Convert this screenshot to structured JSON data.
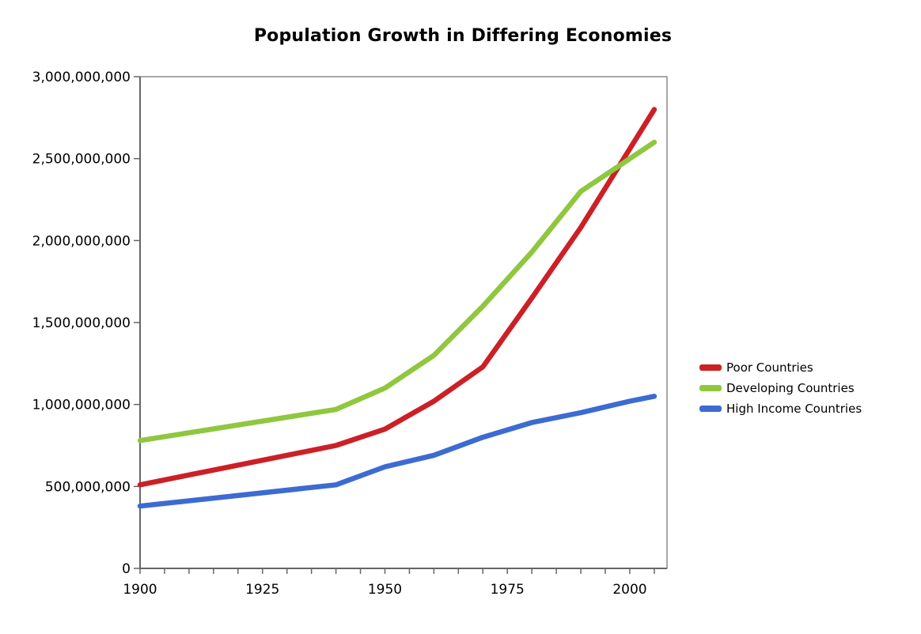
{
  "title": "Population Growth in Differing Economies",
  "colors": {
    "poor_countries": "#CC2026",
    "developing_countries": "#8FC73E",
    "high_income_countries": "#3C6BD1",
    "axis": "#7A7A7A",
    "tick": "#666666",
    "text": "#000000",
    "background": "#FFFFFF"
  },
  "chart_data": {
    "type": "line",
    "title": "Population Growth in Differing Economies",
    "x_years": [
      1900,
      1940,
      1950,
      1960,
      1970,
      1980,
      1990,
      2000,
      2005
    ],
    "series": [
      {
        "name": "Poor Countries",
        "color": "#CC2026",
        "values_billions": [
          0.51,
          0.75,
          0.85,
          1.02,
          1.23,
          1.65,
          2.08,
          2.56,
          2.8
        ]
      },
      {
        "name": "Developing Countries",
        "color": "#8FC73E",
        "values_billions": [
          0.78,
          0.97,
          1.1,
          1.3,
          1.6,
          1.93,
          2.3,
          2.5,
          2.6
        ]
      },
      {
        "name": "High Income Countries",
        "color": "#3C6BD1",
        "values_billions": [
          0.38,
          0.51,
          0.62,
          0.69,
          0.8,
          0.89,
          0.95,
          1.02,
          1.05
        ]
      }
    ],
    "x_axis": {
      "range": [
        1900,
        2007.6
      ],
      "major_tick_labels": [
        "1900",
        "1925",
        "1950",
        "1975",
        "2000"
      ],
      "major_tick_years": [
        1900,
        1925,
        1950,
        1975,
        2000
      ],
      "minor_tick_step_years": 5,
      "minor_tick_start": 1900,
      "minor_tick_end": 2005
    },
    "y_axis": {
      "range": [
        0,
        3000000000
      ],
      "tick_step": 500000000,
      "tick_values": [
        0,
        500000000,
        1000000000,
        1500000000,
        2000000000,
        2500000000,
        3000000000
      ],
      "tick_labels": [
        "0",
        "500,000,000",
        "1,000,000,000",
        "1,500,000,000",
        "2,000,000,000",
        "2,500,000,000",
        "3,000,000,000"
      ]
    },
    "grid": "off",
    "legend_position": "right"
  },
  "legend": {
    "items": [
      {
        "label": "Poor Countries"
      },
      {
        "label": "Developing Countries"
      },
      {
        "label": "High Income Countries"
      }
    ]
  }
}
